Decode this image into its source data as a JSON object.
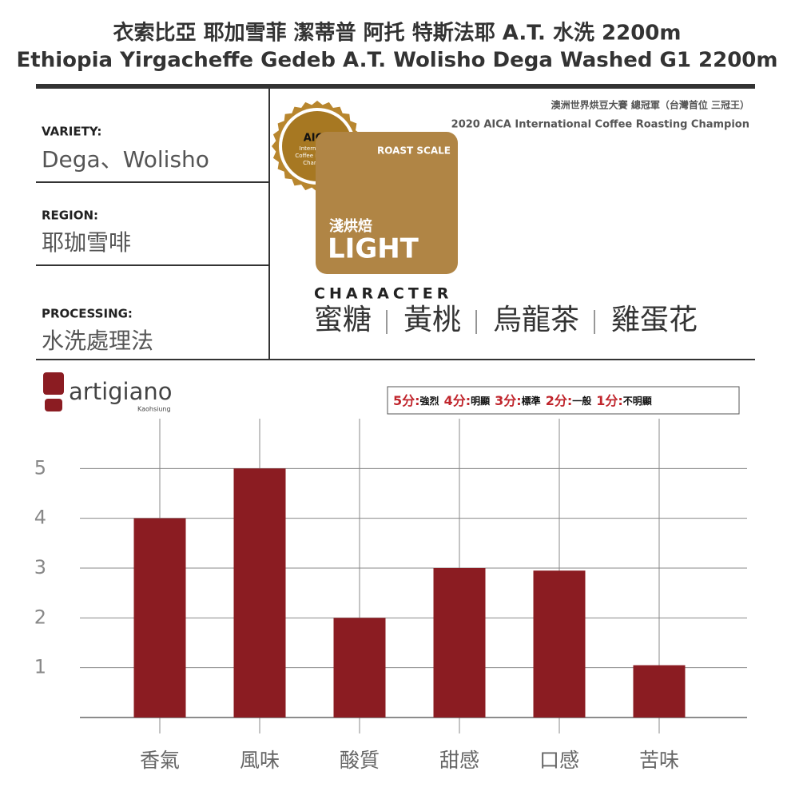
{
  "header": {
    "title_zh": "衣索比亞 耶加雪菲 潔蒂普 阿托 特斯法耶 A.T. 水洗 2200m",
    "title_en": "Ethiopia Yirgacheffe Gedeb A.T. Wolisho Dega Washed G1 2200m"
  },
  "fields": [
    {
      "label": "VARIETY:",
      "value": "Dega、Wolisho"
    },
    {
      "label": "REGION:",
      "value": "耶珈雪啡"
    },
    {
      "label": "PROCESSING:",
      "value": "水洗處理法"
    }
  ],
  "award": {
    "line_zh": "澳洲世界烘豆大賽 總冠軍（台灣首位 三冠王）",
    "line_en": "2020 AICA International Coffee Roasting Champion",
    "badge": [
      "AICA",
      "International",
      "Coffee Roasting",
      "Champion"
    ]
  },
  "roast": {
    "heading": "ROAST SCALE",
    "level_zh": "淺烘焙",
    "level_en": "LIGHT"
  },
  "character": {
    "heading": "CHARACTER",
    "items": [
      "蜜糖",
      "黃桃",
      "烏龍茶",
      "雞蛋花"
    ]
  },
  "brand": {
    "name": "artigiano",
    "city": "Kaohsiung"
  },
  "scale": [
    {
      "score": "5分:",
      "desc": "強烈"
    },
    {
      "score": "4分:",
      "desc": "明顯"
    },
    {
      "score": "3分:",
      "desc": "標準"
    },
    {
      "score": "2分:",
      "desc": "一般"
    },
    {
      "score": "1分:",
      "desc": "不明顯"
    }
  ],
  "chart_data": {
    "type": "bar",
    "categories": [
      "香氣",
      "風味",
      "酸質",
      "甜感",
      "口感",
      "苦味"
    ],
    "values": [
      4,
      5,
      2,
      3,
      2.95,
      1.05
    ],
    "color": "#8b1c22",
    "ylim": [
      0,
      6
    ],
    "yticks": [
      1,
      2,
      3,
      4,
      5
    ],
    "grid": true
  }
}
